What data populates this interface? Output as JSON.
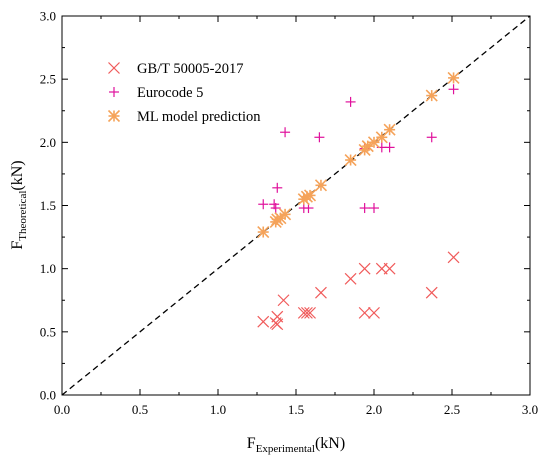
{
  "chart_data": {
    "type": "scatter",
    "xlabel": {
      "main": "F",
      "sub": "Experimental",
      "unit": "(kN)"
    },
    "ylabel": {
      "main": "F",
      "sub": "Theoretical",
      "unit": "(kN)"
    },
    "xlim": [
      0.0,
      3.0
    ],
    "ylim": [
      0.0,
      3.0
    ],
    "xticks": [
      "0.0",
      "0.5",
      "1.0",
      "1.5",
      "2.0",
      "2.5",
      "3.0"
    ],
    "yticks": [
      "0.0",
      "0.5",
      "1.0",
      "1.5",
      "2.0",
      "2.5",
      "3.0"
    ],
    "grid": false,
    "legend_position": "top-left",
    "reference_line": {
      "style": "dashed",
      "from": [
        0,
        0
      ],
      "to": [
        3,
        3
      ]
    },
    "series": [
      {
        "name": "GB/T 50005-2017",
        "marker": "x",
        "color": "#f05a5a",
        "points": [
          [
            1.29,
            0.58
          ],
          [
            1.37,
            0.57
          ],
          [
            1.38,
            0.56
          ],
          [
            1.38,
            0.62
          ],
          [
            1.42,
            0.75
          ],
          [
            1.55,
            0.65
          ],
          [
            1.57,
            0.65
          ],
          [
            1.59,
            0.65
          ],
          [
            1.66,
            0.81
          ],
          [
            1.85,
            0.92
          ],
          [
            1.94,
            1.0
          ],
          [
            1.94,
            0.65
          ],
          [
            2.0,
            0.65
          ],
          [
            2.05,
            1.0
          ],
          [
            2.1,
            1.0
          ],
          [
            2.37,
            0.81
          ],
          [
            2.51,
            1.09
          ]
        ]
      },
      {
        "name": "Eurocode 5",
        "marker": "+",
        "color": "#e0119c",
        "points": [
          [
            1.29,
            1.51
          ],
          [
            1.36,
            1.51
          ],
          [
            1.37,
            1.48
          ],
          [
            1.38,
            1.64
          ],
          [
            1.43,
            2.08
          ],
          [
            1.55,
            1.48
          ],
          [
            1.58,
            1.48
          ],
          [
            1.65,
            2.04
          ],
          [
            1.85,
            2.32
          ],
          [
            1.94,
            1.95
          ],
          [
            1.94,
            1.48
          ],
          [
            2.0,
            1.48
          ],
          [
            2.05,
            1.96
          ],
          [
            2.1,
            1.96
          ],
          [
            2.37,
            2.04
          ],
          [
            2.51,
            2.42
          ]
        ]
      },
      {
        "name": "ML model prediction",
        "marker": "asterisk",
        "color": "#f5a35a",
        "points": [
          [
            1.29,
            1.29
          ],
          [
            1.37,
            1.37
          ],
          [
            1.38,
            1.39
          ],
          [
            1.4,
            1.4
          ],
          [
            1.43,
            1.43
          ],
          [
            1.55,
            1.55
          ],
          [
            1.57,
            1.57
          ],
          [
            1.59,
            1.58
          ],
          [
            1.66,
            1.66
          ],
          [
            1.85,
            1.86
          ],
          [
            1.94,
            1.94
          ],
          [
            1.96,
            1.97
          ],
          [
            2.0,
            2.0
          ],
          [
            2.05,
            2.04
          ],
          [
            2.1,
            2.1
          ],
          [
            2.37,
            2.37
          ],
          [
            2.51,
            2.51
          ]
        ]
      }
    ]
  }
}
